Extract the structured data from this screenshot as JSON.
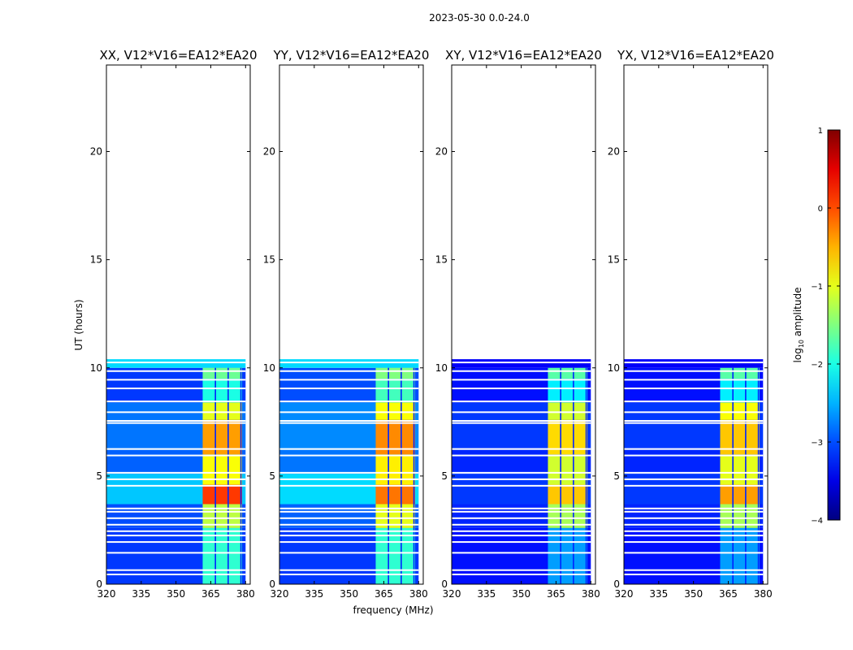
{
  "suptitle": "2023-05-30 0.0-24.0",
  "xlabel": "frequency (MHz)",
  "ylabel": "UT (hours)",
  "colorbar": {
    "label_main": "log",
    "label_sub": "10",
    "label_tail": " amplitude",
    "ticks": [
      "1",
      "0",
      "−1",
      "−2",
      "−3",
      "−4"
    ],
    "range": [
      -4,
      1
    ]
  },
  "chart_data": {
    "type": "heatmap",
    "xlim": [
      320,
      382
    ],
    "ylim": [
      0,
      24
    ],
    "xticks": [
      320,
      335,
      350,
      365,
      380
    ],
    "xtick_labels": [
      "320",
      "335",
      "350",
      "365",
      "380"
    ],
    "yticks": [
      0,
      5,
      10,
      15,
      20
    ],
    "ytick_labels": [
      "0",
      "5",
      "10",
      "15",
      "20"
    ],
    "data_extent_hours": [
      0,
      10.4
    ],
    "data_freq_range": [
      320,
      380
    ],
    "rfi_band_mhz": [
      361.5,
      380
    ],
    "rfi_channel_gaps_mhz": [
      367,
      372.5,
      378
    ],
    "gap_hours": [
      0.45,
      0.65,
      1.45,
      1.95,
      2.25,
      2.45,
      2.75,
      3.05,
      3.35,
      3.5,
      4.55,
      4.85,
      5.15,
      5.95,
      6.25,
      7.45,
      7.55,
      7.95,
      8.45,
      9.05,
      9.45,
      9.85,
      10.25
    ],
    "panels": [
      {
        "title": "XX, V12*V16=EA12*EA20",
        "blocks": [
          {
            "t0": 0,
            "t1": 2.6,
            "f0": 320,
            "f1": 380,
            "v": -3.1
          },
          {
            "t0": 2.6,
            "t1": 3.7,
            "f0": 320,
            "f1": 380,
            "v": -3.0
          },
          {
            "t0": 3.7,
            "t1": 5.1,
            "f0": 320,
            "f1": 380,
            "v": -2.4
          },
          {
            "t0": 5.1,
            "t1": 6.2,
            "f0": 320,
            "f1": 380,
            "v": -2.9
          },
          {
            "t0": 6.2,
            "t1": 8.4,
            "f0": 320,
            "f1": 380,
            "v": -2.8
          },
          {
            "t0": 8.4,
            "t1": 10.0,
            "f0": 320,
            "f1": 380,
            "v": -3.1
          },
          {
            "t0": 10.0,
            "t1": 10.4,
            "f0": 320,
            "f1": 380,
            "v": -2.3
          },
          {
            "t0": 0,
            "t1": 2.6,
            "f0": 361.5,
            "f1": 378.5,
            "v": -1.9
          },
          {
            "t0": 2.6,
            "t1": 3.7,
            "f0": 361.5,
            "f1": 378.5,
            "v": -1.2
          },
          {
            "t0": 3.7,
            "t1": 4.6,
            "f0": 361.5,
            "f1": 378.5,
            "v": 0.1
          },
          {
            "t0": 4.6,
            "t1": 6.0,
            "f0": 361.5,
            "f1": 378.5,
            "v": -0.9
          },
          {
            "t0": 6.0,
            "t1": 7.6,
            "f0": 361.5,
            "f1": 378.5,
            "v": -0.4
          },
          {
            "t0": 7.6,
            "t1": 8.4,
            "f0": 361.5,
            "f1": 378.5,
            "v": -1.0
          },
          {
            "t0": 8.4,
            "t1": 9.5,
            "f0": 361.5,
            "f1": 378.5,
            "v": -2.0
          },
          {
            "t0": 9.5,
            "t1": 10.0,
            "f0": 361.5,
            "f1": 378.5,
            "v": -1.6
          }
        ]
      },
      {
        "title": "YY, V12*V16=EA12*EA20",
        "blocks": [
          {
            "t0": 0,
            "t1": 2.6,
            "f0": 320,
            "f1": 380,
            "v": -3.1
          },
          {
            "t0": 2.6,
            "t1": 3.7,
            "f0": 320,
            "f1": 380,
            "v": -2.9
          },
          {
            "t0": 3.7,
            "t1": 5.1,
            "f0": 320,
            "f1": 380,
            "v": -2.3
          },
          {
            "t0": 5.1,
            "t1": 6.2,
            "f0": 320,
            "f1": 380,
            "v": -2.8
          },
          {
            "t0": 6.2,
            "t1": 8.4,
            "f0": 320,
            "f1": 380,
            "v": -2.7
          },
          {
            "t0": 8.4,
            "t1": 10.0,
            "f0": 320,
            "f1": 380,
            "v": -3.0
          },
          {
            "t0": 10.0,
            "t1": 10.4,
            "f0": 320,
            "f1": 380,
            "v": -2.3
          },
          {
            "t0": 0,
            "t1": 2.6,
            "f0": 361.5,
            "f1": 378.5,
            "v": -1.9
          },
          {
            "t0": 2.6,
            "t1": 3.7,
            "f0": 361.5,
            "f1": 378.5,
            "v": -1.0
          },
          {
            "t0": 3.7,
            "t1": 4.6,
            "f0": 361.5,
            "f1": 378.5,
            "v": -0.2
          },
          {
            "t0": 4.6,
            "t1": 6.0,
            "f0": 361.5,
            "f1": 378.5,
            "v": -0.8
          },
          {
            "t0": 6.0,
            "t1": 7.6,
            "f0": 361.5,
            "f1": 378.5,
            "v": -0.3
          },
          {
            "t0": 7.6,
            "t1": 8.4,
            "f0": 361.5,
            "f1": 378.5,
            "v": -0.9
          },
          {
            "t0": 8.4,
            "t1": 9.5,
            "f0": 361.5,
            "f1": 378.5,
            "v": -1.8
          },
          {
            "t0": 9.5,
            "t1": 10.0,
            "f0": 361.5,
            "f1": 378.5,
            "v": -1.5
          }
        ]
      },
      {
        "title": "XY, V12*V16=EA12*EA20",
        "blocks": [
          {
            "t0": 0,
            "t1": 2.6,
            "f0": 320,
            "f1": 380,
            "v": -3.3
          },
          {
            "t0": 2.6,
            "t1": 3.7,
            "f0": 320,
            "f1": 380,
            "v": -3.2
          },
          {
            "t0": 3.7,
            "t1": 5.1,
            "f0": 320,
            "f1": 380,
            "v": -3.1
          },
          {
            "t0": 5.1,
            "t1": 6.2,
            "f0": 320,
            "f1": 380,
            "v": -3.2
          },
          {
            "t0": 6.2,
            "t1": 8.4,
            "f0": 320,
            "f1": 380,
            "v": -3.1
          },
          {
            "t0": 8.4,
            "t1": 10.0,
            "f0": 320,
            "f1": 380,
            "v": -3.3
          },
          {
            "t0": 10.0,
            "t1": 10.4,
            "f0": 320,
            "f1": 380,
            "v": -3.4
          },
          {
            "t0": 0,
            "t1": 2.6,
            "f0": 361.5,
            "f1": 378.5,
            "v": -2.6
          },
          {
            "t0": 2.6,
            "t1": 3.7,
            "f0": 361.5,
            "f1": 378.5,
            "v": -1.3
          },
          {
            "t0": 3.7,
            "t1": 4.6,
            "f0": 361.5,
            "f1": 378.5,
            "v": -0.6
          },
          {
            "t0": 4.6,
            "t1": 6.0,
            "f0": 361.5,
            "f1": 378.5,
            "v": -1.1
          },
          {
            "t0": 6.0,
            "t1": 7.6,
            "f0": 361.5,
            "f1": 378.5,
            "v": -0.7
          },
          {
            "t0": 7.6,
            "t1": 8.4,
            "f0": 361.5,
            "f1": 378.5,
            "v": -1.1
          },
          {
            "t0": 8.4,
            "t1": 9.5,
            "f0": 361.5,
            "f1": 378.5,
            "v": -2.2
          },
          {
            "t0": 9.5,
            "t1": 10.0,
            "f0": 361.5,
            "f1": 378.5,
            "v": -1.7
          }
        ]
      },
      {
        "title": "YX, V12*V16=EA12*EA20",
        "blocks": [
          {
            "t0": 0,
            "t1": 2.6,
            "f0": 320,
            "f1": 380,
            "v": -3.3
          },
          {
            "t0": 2.6,
            "t1": 3.7,
            "f0": 320,
            "f1": 380,
            "v": -3.2
          },
          {
            "t0": 3.7,
            "t1": 5.1,
            "f0": 320,
            "f1": 380,
            "v": -3.1
          },
          {
            "t0": 5.1,
            "t1": 6.2,
            "f0": 320,
            "f1": 380,
            "v": -3.2
          },
          {
            "t0": 6.2,
            "t1": 8.4,
            "f0": 320,
            "f1": 380,
            "v": -3.1
          },
          {
            "t0": 8.4,
            "t1": 10.0,
            "f0": 320,
            "f1": 380,
            "v": -3.3
          },
          {
            "t0": 10.0,
            "t1": 10.4,
            "f0": 320,
            "f1": 380,
            "v": -3.4
          },
          {
            "t0": 0,
            "t1": 2.6,
            "f0": 361.5,
            "f1": 378.5,
            "v": -2.6
          },
          {
            "t0": 2.6,
            "t1": 3.7,
            "f0": 361.5,
            "f1": 378.5,
            "v": -1.3
          },
          {
            "t0": 3.7,
            "t1": 4.6,
            "f0": 361.5,
            "f1": 378.5,
            "v": -0.4
          },
          {
            "t0": 4.6,
            "t1": 6.0,
            "f0": 361.5,
            "f1": 378.5,
            "v": -1.0
          },
          {
            "t0": 6.0,
            "t1": 7.6,
            "f0": 361.5,
            "f1": 378.5,
            "v": -0.6
          },
          {
            "t0": 7.6,
            "t1": 8.4,
            "f0": 361.5,
            "f1": 378.5,
            "v": -0.9
          },
          {
            "t0": 8.4,
            "t1": 9.5,
            "f0": 361.5,
            "f1": 378.5,
            "v": -2.2
          },
          {
            "t0": 9.5,
            "t1": 10.0,
            "f0": 361.5,
            "f1": 378.5,
            "v": -1.7
          }
        ]
      }
    ]
  }
}
